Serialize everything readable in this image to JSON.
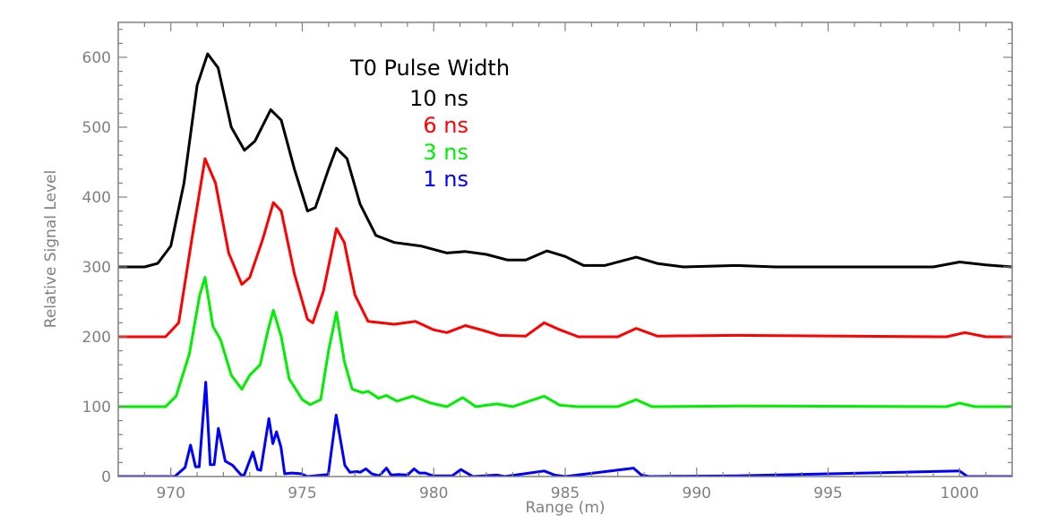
{
  "chart_data": {
    "type": "line",
    "title": "",
    "xlabel": "Range (m)",
    "ylabel": "Relative Signal Level",
    "xlim": [
      968,
      1002
    ],
    "ylim": [
      0,
      650
    ],
    "xticks": [
      970,
      975,
      980,
      985,
      990,
      995,
      1000
    ],
    "yticks": [
      0,
      100,
      200,
      300,
      400,
      500,
      600
    ],
    "grid": false,
    "axis_color": "#808080",
    "legend": {
      "title": "T0 Pulse Width",
      "placement": "top-center",
      "title_color": "#000000"
    },
    "series": [
      {
        "name": "10 ns",
        "color": "#000000",
        "points": [
          [
            968,
            300
          ],
          [
            969,
            300
          ],
          [
            969.5,
            305
          ],
          [
            970,
            330
          ],
          [
            970.5,
            420
          ],
          [
            971,
            560
          ],
          [
            971.4,
            605
          ],
          [
            971.8,
            585
          ],
          [
            972.3,
            500
          ],
          [
            972.8,
            467
          ],
          [
            973.2,
            480
          ],
          [
            973.8,
            525
          ],
          [
            974.2,
            510
          ],
          [
            974.7,
            440
          ],
          [
            975.2,
            380
          ],
          [
            975.5,
            385
          ],
          [
            976,
            440
          ],
          [
            976.3,
            470
          ],
          [
            976.7,
            455
          ],
          [
            977.2,
            390
          ],
          [
            977.8,
            345
          ],
          [
            978.5,
            335
          ],
          [
            979.5,
            330
          ],
          [
            980.5,
            320
          ],
          [
            981.2,
            322
          ],
          [
            982,
            318
          ],
          [
            982.8,
            310
          ],
          [
            983.5,
            310
          ],
          [
            984.3,
            323
          ],
          [
            985,
            315
          ],
          [
            985.7,
            302
          ],
          [
            986.5,
            302
          ],
          [
            987.7,
            314
          ],
          [
            988.5,
            305
          ],
          [
            989.5,
            300
          ],
          [
            991.5,
            302
          ],
          [
            993,
            300
          ],
          [
            999,
            300
          ],
          [
            1000,
            307
          ],
          [
            1001,
            303
          ],
          [
            1002,
            300
          ]
        ]
      },
      {
        "name": "6 ns",
        "color": "#ff0000",
        "points": [
          [
            968,
            200
          ],
          [
            969.8,
            200
          ],
          [
            970.3,
            220
          ],
          [
            970.8,
            340
          ],
          [
            971.3,
            455
          ],
          [
            971.7,
            420
          ],
          [
            972.2,
            320
          ],
          [
            972.7,
            275
          ],
          [
            973,
            285
          ],
          [
            973.5,
            340
          ],
          [
            973.9,
            392
          ],
          [
            974.2,
            380
          ],
          [
            974.7,
            290
          ],
          [
            975.2,
            225
          ],
          [
            975.4,
            220
          ],
          [
            975.8,
            265
          ],
          [
            976.3,
            355
          ],
          [
            976.6,
            335
          ],
          [
            977,
            260
          ],
          [
            977.5,
            222
          ],
          [
            978.5,
            218
          ],
          [
            979.3,
            222
          ],
          [
            980,
            210
          ],
          [
            980.5,
            206
          ],
          [
            981.2,
            216
          ],
          [
            981.8,
            210
          ],
          [
            982.5,
            202
          ],
          [
            983.5,
            201
          ],
          [
            984.2,
            220
          ],
          [
            984.8,
            210
          ],
          [
            985.5,
            200
          ],
          [
            987,
            200
          ],
          [
            987.7,
            212
          ],
          [
            988.5,
            201
          ],
          [
            991.5,
            202
          ],
          [
            999.5,
            200
          ],
          [
            1000.2,
            206
          ],
          [
            1001,
            200
          ],
          [
            1002,
            200
          ]
        ]
      },
      {
        "name": "3 ns",
        "color": "#00ee00",
        "points": [
          [
            968,
            100
          ],
          [
            969.8,
            100
          ],
          [
            970.2,
            115
          ],
          [
            970.7,
            175
          ],
          [
            971.1,
            260
          ],
          [
            971.3,
            285
          ],
          [
            971.6,
            215
          ],
          [
            971.9,
            195
          ],
          [
            972.3,
            145
          ],
          [
            972.7,
            125
          ],
          [
            973,
            145
          ],
          [
            973.4,
            160
          ],
          [
            973.7,
            210
          ],
          [
            973.9,
            238
          ],
          [
            974.2,
            200
          ],
          [
            974.5,
            140
          ],
          [
            975,
            110
          ],
          [
            975.3,
            103
          ],
          [
            975.7,
            110
          ],
          [
            976,
            180
          ],
          [
            976.3,
            235
          ],
          [
            976.6,
            165
          ],
          [
            976.9,
            125
          ],
          [
            977.3,
            120
          ],
          [
            977.5,
            122
          ],
          [
            977.9,
            112
          ],
          [
            978.2,
            116
          ],
          [
            978.6,
            108
          ],
          [
            979.2,
            115
          ],
          [
            979.9,
            105
          ],
          [
            980.5,
            100
          ],
          [
            981.1,
            113
          ],
          [
            981.6,
            100
          ],
          [
            982.4,
            104
          ],
          [
            983,
            100
          ],
          [
            984.2,
            115
          ],
          [
            984.8,
            102
          ],
          [
            985.5,
            100
          ],
          [
            987,
            100
          ],
          [
            987.7,
            110
          ],
          [
            988.3,
            100
          ],
          [
            991.5,
            101
          ],
          [
            999.5,
            100
          ],
          [
            1000,
            105
          ],
          [
            1000.6,
            100
          ],
          [
            1002,
            100
          ]
        ]
      },
      {
        "name": "1 ns",
        "color": "#0000ff",
        "points": [
          [
            968,
            0
          ],
          [
            970.15,
            0
          ],
          [
            970.54,
            13
          ],
          [
            970.75,
            45
          ],
          [
            970.94,
            14
          ],
          [
            971.08,
            14
          ],
          [
            971.33,
            135
          ],
          [
            971.5,
            17
          ],
          [
            971.65,
            17
          ],
          [
            971.81,
            69
          ],
          [
            972.07,
            22
          ],
          [
            972.35,
            16
          ],
          [
            972.7,
            1
          ],
          [
            972.8,
            3
          ],
          [
            973.12,
            35
          ],
          [
            973.3,
            10
          ],
          [
            973.42,
            9
          ],
          [
            973.73,
            83
          ],
          [
            973.88,
            47
          ],
          [
            974.02,
            64
          ],
          [
            974.19,
            42
          ],
          [
            974.33,
            4
          ],
          [
            974.6,
            5
          ],
          [
            974.95,
            4
          ],
          [
            975.2,
            0
          ],
          [
            975.99,
            3
          ],
          [
            976.29,
            88
          ],
          [
            976.62,
            16
          ],
          [
            976.81,
            6
          ],
          [
            977.1,
            7
          ],
          [
            977.2,
            6
          ],
          [
            977.42,
            11
          ],
          [
            977.64,
            4
          ],
          [
            977.93,
            1
          ],
          [
            978.2,
            12
          ],
          [
            978.38,
            2
          ],
          [
            978.66,
            3
          ],
          [
            979,
            2
          ],
          [
            979.25,
            11
          ],
          [
            979.45,
            5
          ],
          [
            979.68,
            5
          ],
          [
            979.96,
            1
          ],
          [
            980.7,
            1
          ],
          [
            981.03,
            10
          ],
          [
            981.49,
            0
          ],
          [
            982.4,
            2
          ],
          [
            982.7,
            0
          ],
          [
            984.2,
            8
          ],
          [
            984.6,
            2
          ],
          [
            985,
            0
          ],
          [
            987.6,
            12
          ],
          [
            987.9,
            2
          ],
          [
            988.2,
            0
          ],
          [
            991.5,
            1
          ],
          [
            1000,
            8
          ],
          [
            1000.3,
            0
          ],
          [
            1002,
            0
          ]
        ]
      }
    ]
  }
}
